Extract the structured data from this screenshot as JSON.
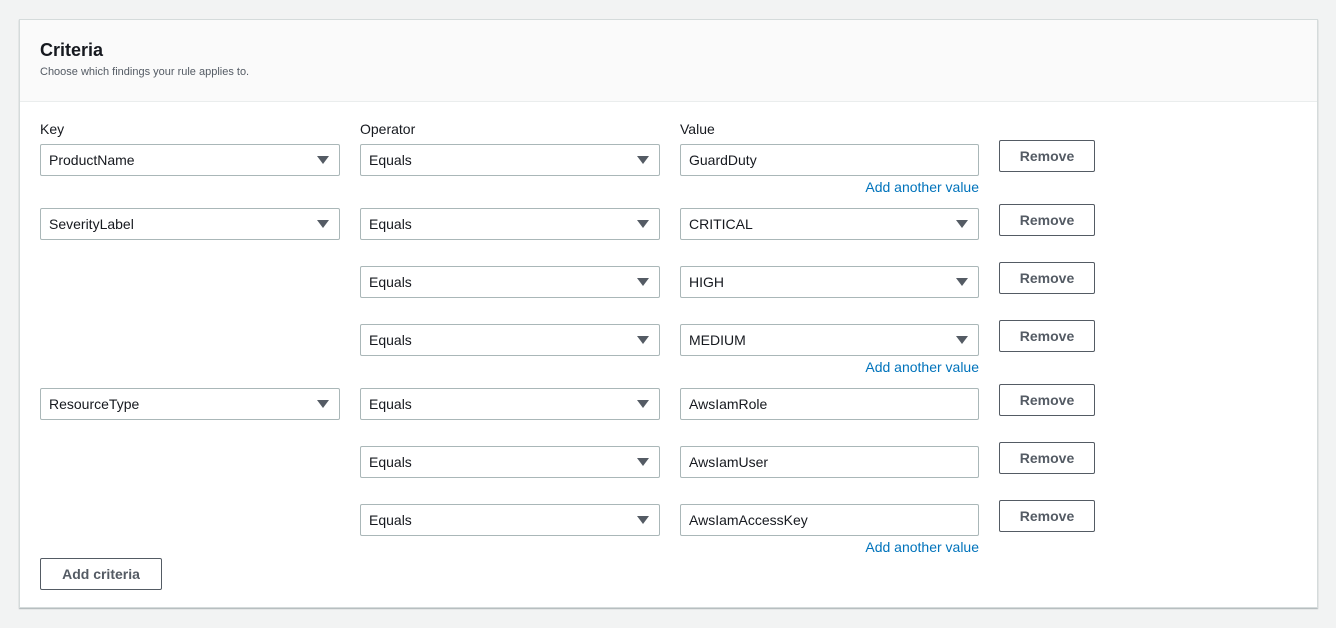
{
  "header": {
    "title": "Criteria",
    "description": "Choose which findings your rule applies to."
  },
  "columns": {
    "key": "Key",
    "operator": "Operator",
    "value": "Value"
  },
  "rows": [
    {
      "key": "ProductName",
      "operator": "Equals",
      "value": "GuardDuty",
      "value_dropdown": false,
      "add_link": "Add another value"
    },
    {
      "key": "SeverityLabel",
      "operator": "Equals",
      "value": "CRITICAL",
      "value_dropdown": true
    },
    {
      "operator": "Equals",
      "value": "HIGH",
      "value_dropdown": true
    },
    {
      "operator": "Equals",
      "value": "MEDIUM",
      "value_dropdown": true,
      "add_link": "Add another value"
    },
    {
      "key": "ResourceType",
      "operator": "Equals",
      "value": "AwsIamRole",
      "value_dropdown": false
    },
    {
      "operator": "Equals",
      "value": "AwsIamUser",
      "value_dropdown": false
    },
    {
      "operator": "Equals",
      "value": "AwsIamAccessKey",
      "value_dropdown": false,
      "add_link": "Add another value"
    }
  ],
  "remove_label": "Remove",
  "add_criteria_label": "Add criteria",
  "colors": {
    "link": "#0073bb",
    "border": "#aab7b8",
    "button_text": "#545b64"
  }
}
